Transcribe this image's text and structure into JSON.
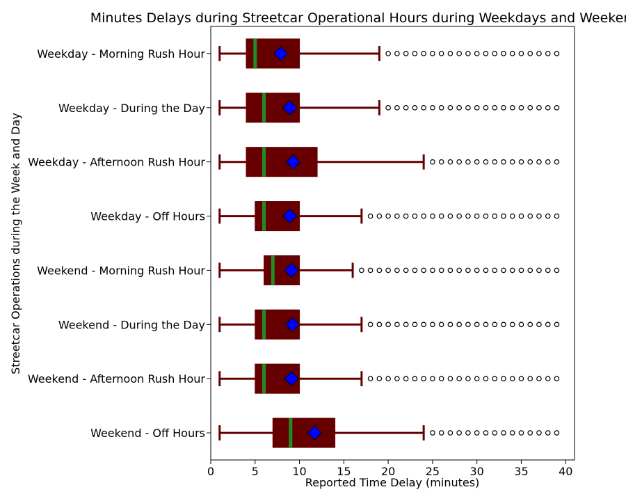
{
  "chart_data": {
    "type": "boxplot",
    "orientation": "horizontal",
    "title": "Minutes Delays during Streetcar Operational Hours during Weekdays and Weekends",
    "xlabel": "Reported Time Delay (minutes)",
    "ylabel": "Streetcar Operations during the Week and Day",
    "xlim": [
      0,
      41
    ],
    "xticks": [
      0,
      5,
      10,
      15,
      20,
      25,
      30,
      35,
      40
    ],
    "grid": false,
    "colors": {
      "box_fill": "#660000",
      "box_edge": "#660000",
      "median": "#228B22",
      "mean_marker": "#0000FF",
      "outlier_edge": "#000000"
    },
    "categories": [
      {
        "label": "Weekday - Morning Rush Hour",
        "whisker_low": 1,
        "q1": 4,
        "median": 5,
        "q3": 10,
        "whisker_high": 19,
        "mean": 7.9,
        "outliers": [
          20,
          21,
          22,
          23,
          24,
          25,
          26,
          27,
          28,
          29,
          30,
          31,
          32,
          33,
          34,
          35,
          36,
          37,
          38,
          39
        ]
      },
      {
        "label": "Weekday - During the Day",
        "whisker_low": 1,
        "q1": 4,
        "median": 6,
        "q3": 10,
        "whisker_high": 19,
        "mean": 8.9,
        "outliers": [
          20,
          21,
          22,
          23,
          24,
          25,
          26,
          27,
          28,
          29,
          30,
          31,
          32,
          33,
          34,
          35,
          36,
          37,
          38,
          39
        ]
      },
      {
        "label": "Weekday - Afternoon Rush Hour",
        "whisker_low": 1,
        "q1": 4,
        "median": 6,
        "q3": 12,
        "whisker_high": 24,
        "mean": 9.3,
        "outliers": [
          25,
          26,
          27,
          28,
          29,
          30,
          31,
          32,
          33,
          34,
          35,
          36,
          37,
          38,
          39
        ]
      },
      {
        "label": "Weekday - Off Hours",
        "whisker_low": 1,
        "q1": 5,
        "median": 6,
        "q3": 10,
        "whisker_high": 17,
        "mean": 8.9,
        "outliers": [
          18,
          19,
          20,
          21,
          22,
          23,
          24,
          25,
          26,
          27,
          28,
          29,
          30,
          31,
          32,
          33,
          34,
          35,
          36,
          37,
          38,
          39
        ]
      },
      {
        "label": "Weekend - Morning Rush Hour",
        "whisker_low": 1,
        "q1": 6,
        "median": 7,
        "q3": 10,
        "whisker_high": 16,
        "mean": 9.1,
        "outliers": [
          17,
          18,
          19,
          20,
          21,
          22,
          23,
          24,
          25,
          26,
          27,
          28,
          29,
          30,
          31,
          32,
          33,
          34,
          35,
          36,
          37,
          38,
          39
        ]
      },
      {
        "label": "Weekend - During the Day",
        "whisker_low": 1,
        "q1": 5,
        "median": 6,
        "q3": 10,
        "whisker_high": 17,
        "mean": 9.2,
        "outliers": [
          18,
          19,
          20,
          21,
          22,
          23,
          24,
          25,
          26,
          27,
          28,
          29,
          30,
          31,
          32,
          33,
          34,
          35,
          36,
          37,
          38,
          39
        ]
      },
      {
        "label": "Weekend - Afternoon Rush Hour",
        "whisker_low": 1,
        "q1": 5,
        "median": 6,
        "q3": 10,
        "whisker_high": 17,
        "mean": 9.1,
        "outliers": [
          18,
          19,
          20,
          21,
          22,
          23,
          24,
          25,
          26,
          27,
          28,
          29,
          30,
          31,
          32,
          33,
          34,
          35,
          36,
          37,
          38,
          39
        ]
      },
      {
        "label": "Weekend - Off Hours",
        "whisker_low": 1,
        "q1": 7,
        "median": 9,
        "q3": 14,
        "whisker_high": 24,
        "mean": 11.7,
        "outliers": [
          25,
          26,
          27,
          28,
          29,
          30,
          31,
          32,
          33,
          34,
          35,
          36,
          37,
          38,
          39
        ]
      }
    ]
  }
}
